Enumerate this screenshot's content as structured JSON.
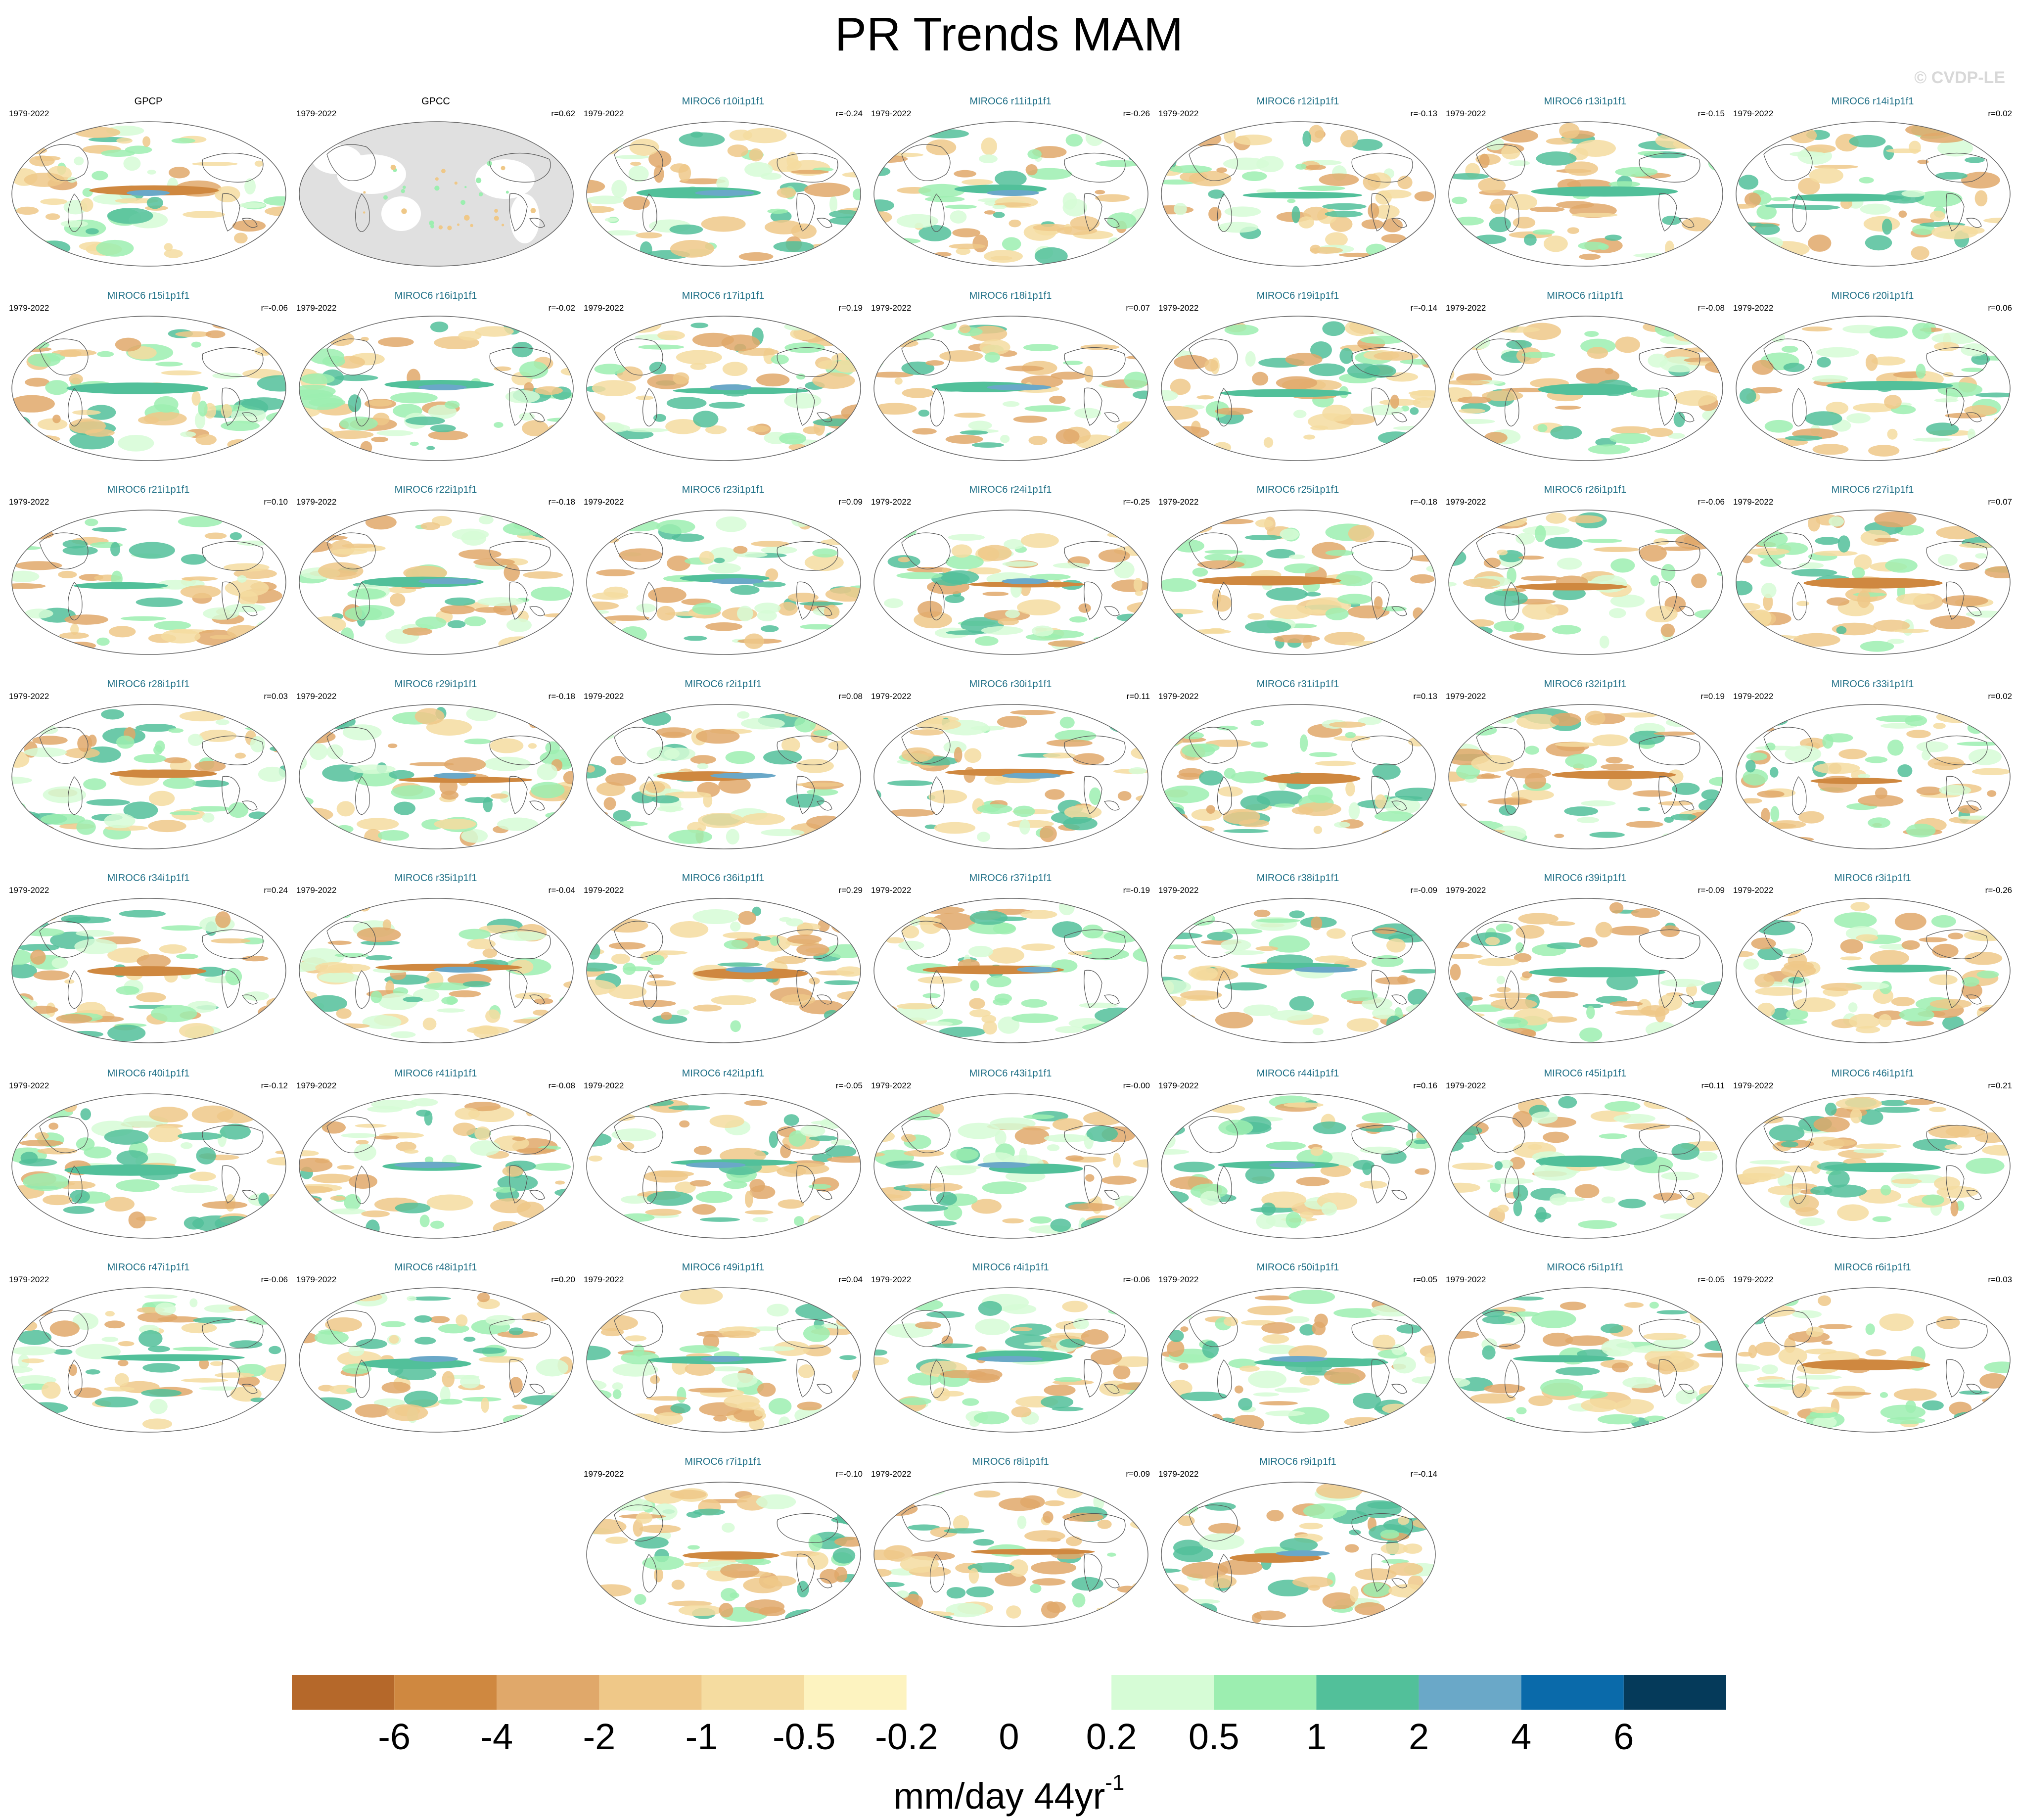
{
  "header": {
    "title": "PR Trends MAM",
    "watermark": "© CVDP-LE"
  },
  "panels": [
    {
      "title": "GPCP",
      "period": "1979-2022",
      "r": "",
      "observation": true,
      "masked": false
    },
    {
      "title": "GPCC",
      "period": "1979-2022",
      "r": "r=0.62",
      "observation": true,
      "masked": true
    },
    {
      "title": "MIROC6 r10i1p1f1",
      "period": "1979-2022",
      "r": "r=-0.24"
    },
    {
      "title": "MIROC6 r11i1p1f1",
      "period": "1979-2022",
      "r": "r=-0.26"
    },
    {
      "title": "MIROC6 r12i1p1f1",
      "period": "1979-2022",
      "r": "r=-0.13"
    },
    {
      "title": "MIROC6 r13i1p1f1",
      "period": "1979-2022",
      "r": "r=-0.15"
    },
    {
      "title": "MIROC6 r14i1p1f1",
      "period": "1979-2022",
      "r": "r=0.02"
    },
    {
      "title": "MIROC6 r15i1p1f1",
      "period": "1979-2022",
      "r": "r=-0.06"
    },
    {
      "title": "MIROC6 r16i1p1f1",
      "period": "1979-2022",
      "r": "r=-0.02"
    },
    {
      "title": "MIROC6 r17i1p1f1",
      "period": "1979-2022",
      "r": "r=0.19"
    },
    {
      "title": "MIROC6 r18i1p1f1",
      "period": "1979-2022",
      "r": "r=0.07"
    },
    {
      "title": "MIROC6 r19i1p1f1",
      "period": "1979-2022",
      "r": "r=-0.14"
    },
    {
      "title": "MIROC6 r1i1p1f1",
      "period": "1979-2022",
      "r": "r=-0.08"
    },
    {
      "title": "MIROC6 r20i1p1f1",
      "period": "1979-2022",
      "r": "r=0.06"
    },
    {
      "title": "MIROC6 r21i1p1f1",
      "period": "1979-2022",
      "r": "r=0.10"
    },
    {
      "title": "MIROC6 r22i1p1f1",
      "period": "1979-2022",
      "r": "r=-0.18"
    },
    {
      "title": "MIROC6 r23i1p1f1",
      "period": "1979-2022",
      "r": "r=0.09"
    },
    {
      "title": "MIROC6 r24i1p1f1",
      "period": "1979-2022",
      "r": "r=-0.25"
    },
    {
      "title": "MIROC6 r25i1p1f1",
      "period": "1979-2022",
      "r": "r=-0.18"
    },
    {
      "title": "MIROC6 r26i1p1f1",
      "period": "1979-2022",
      "r": "r=-0.06"
    },
    {
      "title": "MIROC6 r27i1p1f1",
      "period": "1979-2022",
      "r": "r=0.07"
    },
    {
      "title": "MIROC6 r28i1p1f1",
      "period": "1979-2022",
      "r": "r=0.03"
    },
    {
      "title": "MIROC6 r29i1p1f1",
      "period": "1979-2022",
      "r": "r=-0.18"
    },
    {
      "title": "MIROC6 r2i1p1f1",
      "period": "1979-2022",
      "r": "r=0.08"
    },
    {
      "title": "MIROC6 r30i1p1f1",
      "period": "1979-2022",
      "r": "r=0.11"
    },
    {
      "title": "MIROC6 r31i1p1f1",
      "period": "1979-2022",
      "r": "r=0.13"
    },
    {
      "title": "MIROC6 r32i1p1f1",
      "period": "1979-2022",
      "r": "r=0.19"
    },
    {
      "title": "MIROC6 r33i1p1f1",
      "period": "1979-2022",
      "r": "r=0.02"
    },
    {
      "title": "MIROC6 r34i1p1f1",
      "period": "1979-2022",
      "r": "r=0.24"
    },
    {
      "title": "MIROC6 r35i1p1f1",
      "period": "1979-2022",
      "r": "r=-0.04"
    },
    {
      "title": "MIROC6 r36i1p1f1",
      "period": "1979-2022",
      "r": "r=0.29"
    },
    {
      "title": "MIROC6 r37i1p1f1",
      "period": "1979-2022",
      "r": "r=-0.19"
    },
    {
      "title": "MIROC6 r38i1p1f1",
      "period": "1979-2022",
      "r": "r=-0.09"
    },
    {
      "title": "MIROC6 r39i1p1f1",
      "period": "1979-2022",
      "r": "r=-0.09"
    },
    {
      "title": "MIROC6 r3i1p1f1",
      "period": "1979-2022",
      "r": "r=-0.26"
    },
    {
      "title": "MIROC6 r40i1p1f1",
      "period": "1979-2022",
      "r": "r=-0.12"
    },
    {
      "title": "MIROC6 r41i1p1f1",
      "period": "1979-2022",
      "r": "r=-0.08"
    },
    {
      "title": "MIROC6 r42i1p1f1",
      "period": "1979-2022",
      "r": "r=-0.05"
    },
    {
      "title": "MIROC6 r43i1p1f1",
      "period": "1979-2022",
      "r": "r=-0.00"
    },
    {
      "title": "MIROC6 r44i1p1f1",
      "period": "1979-2022",
      "r": "r=0.16"
    },
    {
      "title": "MIROC6 r45i1p1f1",
      "period": "1979-2022",
      "r": "r=0.11"
    },
    {
      "title": "MIROC6 r46i1p1f1",
      "period": "1979-2022",
      "r": "r=0.21"
    },
    {
      "title": "MIROC6 r47i1p1f1",
      "period": "1979-2022",
      "r": "r=-0.06"
    },
    {
      "title": "MIROC6 r48i1p1f1",
      "period": "1979-2022",
      "r": "r=0.20"
    },
    {
      "title": "MIROC6 r49i1p1f1",
      "period": "1979-2022",
      "r": "r=0.04"
    },
    {
      "title": "MIROC6 r4i1p1f1",
      "period": "1979-2022",
      "r": "r=-0.06"
    },
    {
      "title": "MIROC6 r50i1p1f1",
      "period": "1979-2022",
      "r": "r=0.05"
    },
    {
      "title": "MIROC6 r5i1p1f1",
      "period": "1979-2022",
      "r": "r=-0.05"
    },
    {
      "title": "MIROC6 r6i1p1f1",
      "period": "1979-2022",
      "r": "r=0.03"
    },
    {
      "title": "MIROC6 r7i1p1f1",
      "period": "1979-2022",
      "r": "r=-0.10"
    },
    {
      "title": "MIROC6 r8i1p1f1",
      "period": "1979-2022",
      "r": "r=0.09"
    },
    {
      "title": "MIROC6 r9i1p1f1",
      "period": "1979-2022",
      "r": "r=-0.14"
    }
  ],
  "colorbar": {
    "units": "mm/day 44yr",
    "units_exponent": "-1",
    "labels": [
      "-6",
      "-4",
      "-2",
      "-1",
      "-0.5",
      "-0.2",
      "0",
      "0.2",
      "0.5",
      "1",
      "2",
      "4",
      "6"
    ],
    "colors": [
      "#b5682a",
      "#cf8840",
      "#e0a86a",
      "#efc888",
      "#f5dca0",
      "#fdf3c0",
      "#ffffff",
      "#ffffff",
      "#d6fcd6",
      "#9ceeb0",
      "#52c09a",
      "#6aa8c8",
      "#0a6aaa",
      "#053a5a"
    ]
  },
  "map_style": {
    "ocean_background": "#ffffff",
    "masked_fill": "#e0e0e0",
    "coastline_color": "#555555"
  }
}
